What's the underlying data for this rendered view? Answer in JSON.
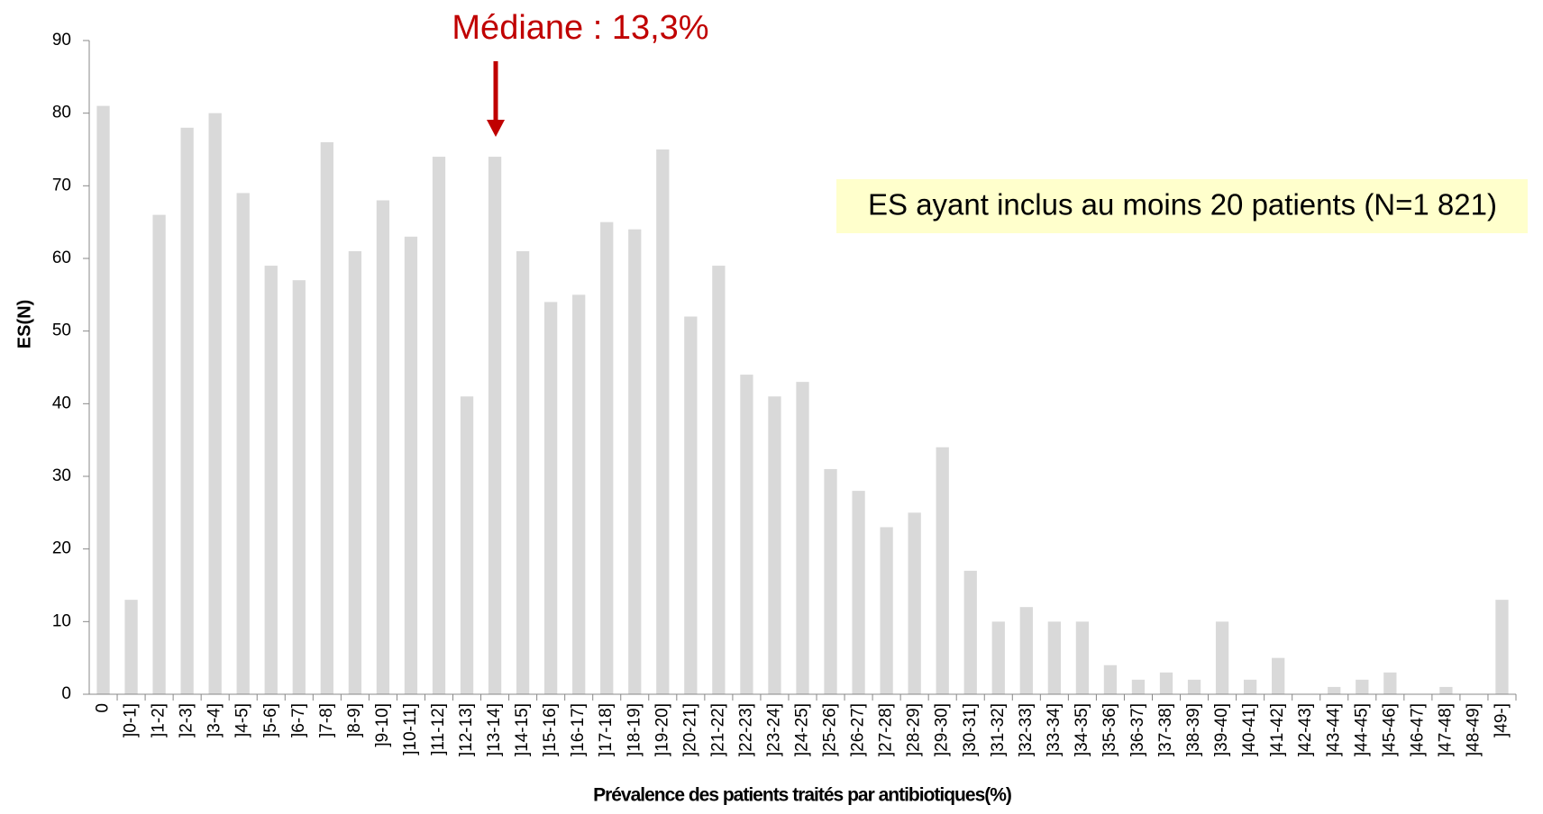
{
  "chart_data": {
    "type": "bar",
    "categories": [
      "0",
      "]0-1]",
      "]1-2]",
      "]2-3]",
      "]3-4]",
      "]4-5]",
      "]5-6]",
      "]6-7]",
      "]7-8]",
      "]8-9]",
      "]9-10]",
      "]10-11]",
      "]11-12]",
      "]12-13]",
      "]13-14]",
      "]14-15]",
      "]15-16]",
      "]16-17]",
      "]17-18]",
      "]18-19]",
      "]19-20]",
      "]20-21]",
      "]21-22]",
      "]22-23]",
      "]23-24]",
      "]24-25]",
      "]25-26]",
      "]26-27]",
      "]27-28]",
      "]28-29]",
      "]29-30]",
      "]30-31]",
      "]31-32]",
      "]32-33]",
      "]33-34]",
      "]34-35]",
      "]35-36]",
      "]36-37]",
      "]37-38]",
      "]38-39]",
      "]39-40]",
      "]40-41]",
      "]41-42]",
      "]42-43]",
      "]43-44]",
      "]44-45]",
      "]45-46]",
      "]46-47]",
      "]47-48]",
      "]48-49]",
      "]49-]"
    ],
    "values": [
      81,
      13,
      66,
      78,
      80,
      69,
      59,
      57,
      76,
      61,
      68,
      63,
      74,
      41,
      74,
      61,
      54,
      55,
      65,
      64,
      75,
      52,
      59,
      44,
      41,
      43,
      31,
      28,
      23,
      25,
      34,
      17,
      10,
      12,
      10,
      10,
      4,
      2,
      3,
      2,
      10,
      2,
      5,
      0,
      1,
      2,
      3,
      0,
      1,
      0,
      13
    ],
    "color": "#d9d9d9",
    "ylim": [
      0,
      90
    ],
    "yticks": [
      0,
      10,
      20,
      30,
      40,
      50,
      60,
      70,
      80,
      90
    ],
    "grid": false,
    "y_label": "ES(N)",
    "x_label": "Prévalence  des patients traités par antibiotiques(%)",
    "annotations": {
      "median": "Médiane : 13,3%",
      "note": "ES ayant inclus au moins 20 patients (N=1 821)"
    }
  }
}
